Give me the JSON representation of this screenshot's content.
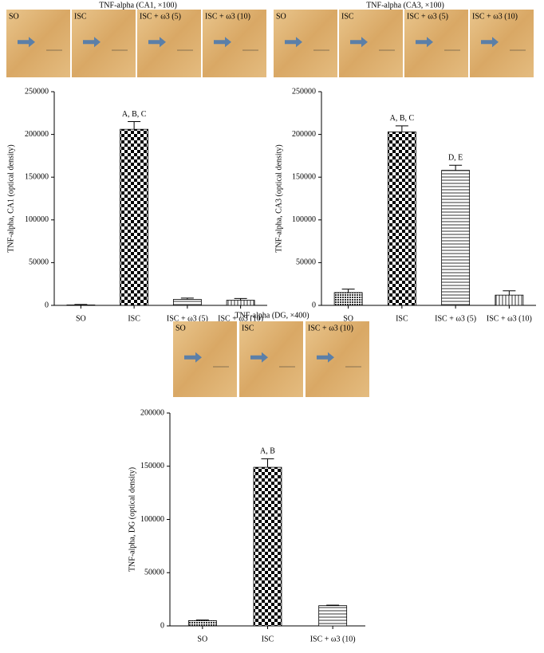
{
  "chart_data": [
    {
      "type": "bar",
      "image_title": "TNF-alpha (CA1, ×100)",
      "image_labels": [
        "SO",
        "ISC",
        "ISC + ω3 (5)",
        "ISC + ω3 (10)"
      ],
      "y_label": "TNF-alpha, CA1 (optical density)",
      "categories": [
        "SO",
        "ISC",
        "ISC + ω3 (5)",
        "ISC + ω3 (10)"
      ],
      "values": [
        500,
        206000,
        7000,
        6000
      ],
      "errors": [
        500,
        9000,
        1500,
        2000
      ],
      "annotations": [
        null,
        "A, B, C",
        null,
        null
      ],
      "patterns": [
        "crosshatch",
        "checker",
        "hlines",
        "vlines"
      ],
      "color": "#000000",
      "ylim": [
        0,
        250000
      ],
      "yticks": [
        0,
        50000,
        100000,
        150000,
        200000,
        250000
      ]
    },
    {
      "type": "bar",
      "image_title": "TNF-alpha (CA3, ×100)",
      "image_labels": [
        "SO",
        "ISC",
        "ISC + ω3 (5)",
        "ISC + ω3 (10)"
      ],
      "y_label": "TNF-alpha, CA3 (optical density)",
      "categories": [
        "SO",
        "ISC",
        "ISC + ω3 (5)",
        "ISC + ω3 (10)"
      ],
      "values": [
        15000,
        203000,
        158000,
        12000
      ],
      "errors": [
        4000,
        7000,
        6000,
        5000
      ],
      "annotations": [
        null,
        "A, B, C",
        "D, E",
        null
      ],
      "patterns": [
        "crosshatch",
        "checker",
        "hlines",
        "vlines"
      ],
      "color": "#000000",
      "ylim": [
        0,
        250000
      ],
      "yticks": [
        0,
        50000,
        100000,
        150000,
        200000,
        250000
      ]
    },
    {
      "type": "bar",
      "image_title": "TNF-alpha (DG, ×400)",
      "image_labels": [
        "SO",
        "ISC",
        "ISC + ω3 (10)"
      ],
      "y_label": "TNF-alpha, DG (optical density)",
      "categories": [
        "SO",
        "ISC",
        "ISC + ω3 (10)"
      ],
      "values": [
        5000,
        149000,
        19000
      ],
      "errors": [
        500,
        8000,
        500
      ],
      "annotations": [
        null,
        "A, B",
        null
      ],
      "patterns": [
        "crosshatch",
        "checker",
        "hlines"
      ],
      "color": "#000000",
      "ylim": [
        0,
        200000
      ],
      "yticks": [
        0,
        50000,
        100000,
        150000,
        200000
      ]
    }
  ]
}
